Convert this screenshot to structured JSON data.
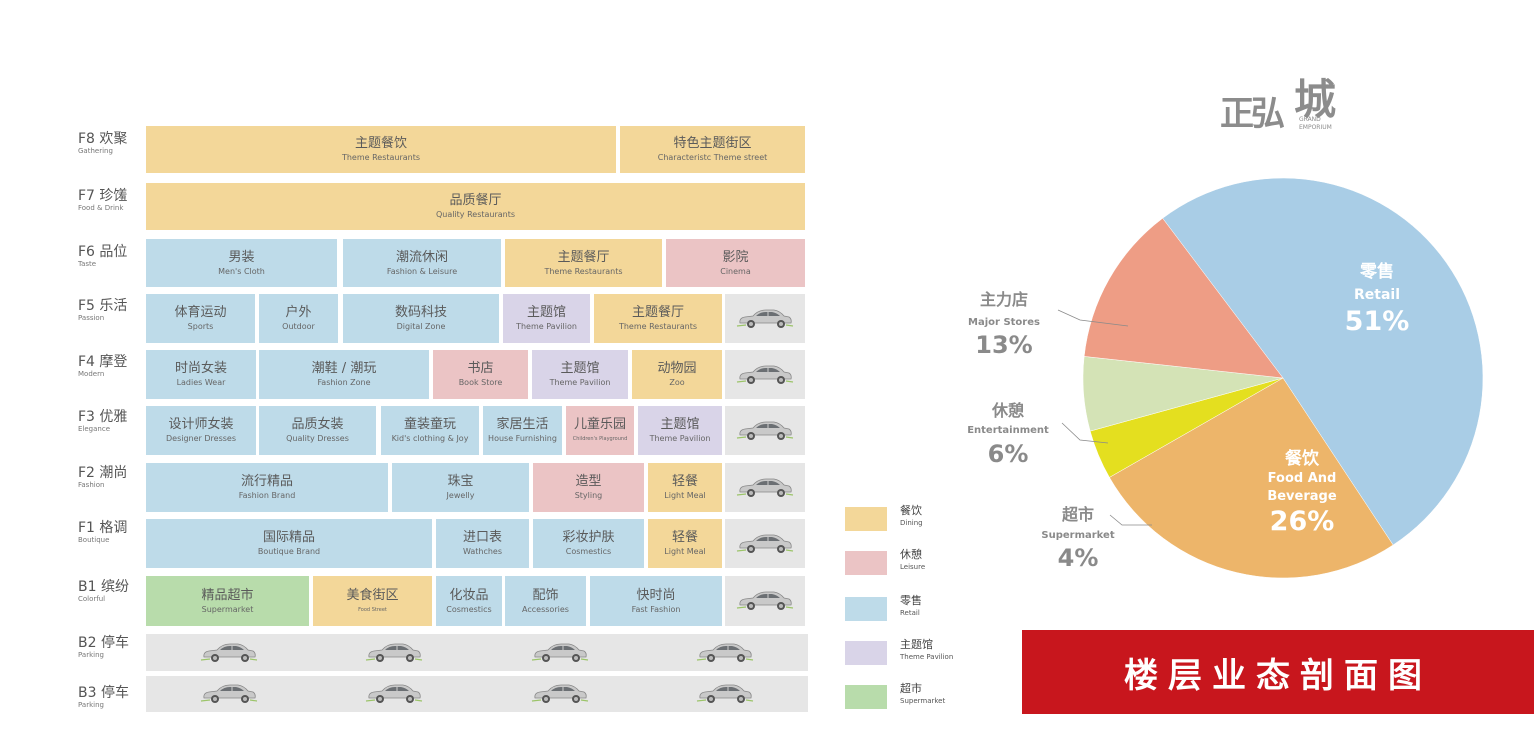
{
  "colors": {
    "dining": "#f3d799",
    "leisure": "#ebc4c5",
    "retail": "#bedbe9",
    "theme_pavilion": "#d9d4e8",
    "supermarket": "#b8dcab",
    "parking": "#e6e6e6",
    "banner": "#c8161d"
  },
  "floors": [
    {
      "id": "F8",
      "title": "F8 欢聚",
      "sub": "Gathering",
      "cells": [
        {
          "cn": "主题餐饮",
          "en": "Theme Restaurants",
          "cat": "dining"
        },
        {
          "cn": "特色主题街区",
          "en": "Characteristc Theme street",
          "cat": "dining"
        }
      ]
    },
    {
      "id": "F7",
      "title": "F7 珍馐",
      "sub": "Food & Drink",
      "cells": [
        {
          "cn": "品质餐厅",
          "en": "Quality Restaurants",
          "cat": "dining"
        }
      ]
    },
    {
      "id": "F6",
      "title": "F6 品位",
      "sub": "Taste",
      "cells": [
        {
          "cn": "男装",
          "en": "Men's Cloth",
          "cat": "retail"
        },
        {
          "cn": "潮流休闲",
          "en": "Fashion & Leisure",
          "cat": "retail"
        },
        {
          "cn": "主题餐厅",
          "en": "Theme Restaurants",
          "cat": "dining"
        },
        {
          "cn": "影院",
          "en": "Cinema",
          "cat": "leisure"
        }
      ]
    },
    {
      "id": "F5",
      "title": "F5 乐活",
      "sub": "Passion",
      "cells": [
        {
          "cn": "体育运动",
          "en": "Sports",
          "cat": "retail"
        },
        {
          "cn": "户外",
          "en": "Outdoor",
          "cat": "retail"
        },
        {
          "cn": "数码科技",
          "en": "Digital Zone",
          "cat": "retail"
        },
        {
          "cn": "主题馆",
          "en": "Theme Pavilion",
          "cat": "theme_pavilion"
        },
        {
          "cn": "主题餐厅",
          "en": "Theme Restaurants",
          "cat": "dining"
        },
        {
          "cn": "",
          "en": "",
          "cat": "parking",
          "cars": 1
        }
      ]
    },
    {
      "id": "F4",
      "title": "F4 摩登",
      "sub": "Modern",
      "cells": [
        {
          "cn": "时尚女装",
          "en": "Ladies Wear",
          "cat": "retail"
        },
        {
          "cn": "潮鞋 / 潮玩",
          "en": "Fashion Zone",
          "cat": "retail"
        },
        {
          "cn": "书店",
          "en": "Book Store",
          "cat": "leisure"
        },
        {
          "cn": "主题馆",
          "en": "Theme Pavilion",
          "cat": "theme_pavilion"
        },
        {
          "cn": "动物园",
          "en": "Zoo",
          "cat": "dining"
        },
        {
          "cn": "",
          "en": "",
          "cat": "parking",
          "cars": 1
        }
      ]
    },
    {
      "id": "F3",
      "title": "F3 优雅",
      "sub": "Elegance",
      "cells": [
        {
          "cn": "设计师女装",
          "en": "Designer Dresses",
          "cat": "retail"
        },
        {
          "cn": "品质女装",
          "en": "Quality Dresses",
          "cat": "retail"
        },
        {
          "cn": "童装童玩",
          "en": "Kid's clothing & Joy",
          "cat": "retail"
        },
        {
          "cn": "家居生活",
          "en": "House Furnishing",
          "cat": "retail"
        },
        {
          "cn": "儿童乐园",
          "en": "Children's Playground",
          "cat": "leisure",
          "small": true
        },
        {
          "cn": "主题馆",
          "en": "Theme Pavilion",
          "cat": "theme_pavilion"
        },
        {
          "cn": "",
          "en": "",
          "cat": "parking",
          "cars": 1
        }
      ]
    },
    {
      "id": "F2",
      "title": "F2 潮尚",
      "sub": "Fashion",
      "cells": [
        {
          "cn": "流行精品",
          "en": "Fashion Brand",
          "cat": "retail"
        },
        {
          "cn": "珠宝",
          "en": "Jewelly",
          "cat": "retail"
        },
        {
          "cn": "造型",
          "en": "Styling",
          "cat": "leisure"
        },
        {
          "cn": "轻餐",
          "en": "Light Meal",
          "cat": "dining"
        },
        {
          "cn": "",
          "en": "",
          "cat": "parking",
          "cars": 1
        }
      ]
    },
    {
      "id": "F1",
      "title": "F1 格调",
      "sub": "Boutique",
      "cells": [
        {
          "cn": "国际精品",
          "en": "Boutique Brand",
          "cat": "retail"
        },
        {
          "cn": "进口表",
          "en": "Wathches",
          "cat": "retail"
        },
        {
          "cn": "彩妆护肤",
          "en": "Cosmestics",
          "cat": "retail"
        },
        {
          "cn": "轻餐",
          "en": "Light Meal",
          "cat": "dining"
        },
        {
          "cn": "",
          "en": "",
          "cat": "parking",
          "cars": 1
        }
      ]
    },
    {
      "id": "B1",
      "title": "B1 缤纷",
      "sub": "Colorful",
      "cells": [
        {
          "cn": "精品超市",
          "en": "Supermarket",
          "cat": "supermarket"
        },
        {
          "cn": "美食街区",
          "en": "Food Street",
          "cat": "dining",
          "small": true
        },
        {
          "cn": "化妆品",
          "en": "Cosmestics",
          "cat": "retail"
        },
        {
          "cn": "配饰",
          "en": "Accessories",
          "cat": "retail"
        },
        {
          "cn": "快时尚",
          "en": "Fast Fashion",
          "cat": "retail"
        },
        {
          "cn": "",
          "en": "",
          "cat": "parking",
          "cars": 1
        }
      ]
    },
    {
      "id": "B2",
      "title": "B2 停车",
      "sub": "Parking",
      "cells": [
        {
          "cn": "",
          "en": "",
          "cat": "parking",
          "cars": 4
        }
      ]
    },
    {
      "id": "B3",
      "title": "B3 停车",
      "sub": "Parking",
      "cells": [
        {
          "cn": "",
          "en": "",
          "cat": "parking",
          "cars": 4
        }
      ]
    }
  ],
  "legend": [
    {
      "cn": "餐饮",
      "en": "Dining",
      "cat": "dining"
    },
    {
      "cn": "休憩",
      "en": "Leisure",
      "cat": "leisure"
    },
    {
      "cn": "零售",
      "en": "Retail",
      "cat": "retail"
    },
    {
      "cn": "主题馆",
      "en": "Theme Pavilion",
      "cat": "theme_pavilion"
    },
    {
      "cn": "超市",
      "en": "Supermarket",
      "cat": "supermarket"
    }
  ],
  "logo": {
    "main": "正弘",
    "big": "城",
    "en1": "GRAND",
    "en2": "EMPORIUM"
  },
  "chart_data": {
    "type": "pie",
    "slices": [
      {
        "cn": "零售",
        "en": "Retail",
        "value": 51,
        "label": "51%",
        "color": "#a9cde6"
      },
      {
        "cn": "餐饮",
        "en": "Food And Beverage",
        "value": 26,
        "label": "26%",
        "color": "#edb56a"
      },
      {
        "cn": "超市",
        "en": "Supermarket",
        "value": 4,
        "label": "4%",
        "color": "#e4df1f"
      },
      {
        "cn": "休憩",
        "en": "Entertainment",
        "value": 6,
        "label": "6%",
        "color": "#d4e3b6"
      },
      {
        "cn": "主力店",
        "en": "Major Stores",
        "value": 13,
        "label": "13%",
        "color": "#ee9d85"
      }
    ]
  },
  "banner": "楼层业态剖面图"
}
